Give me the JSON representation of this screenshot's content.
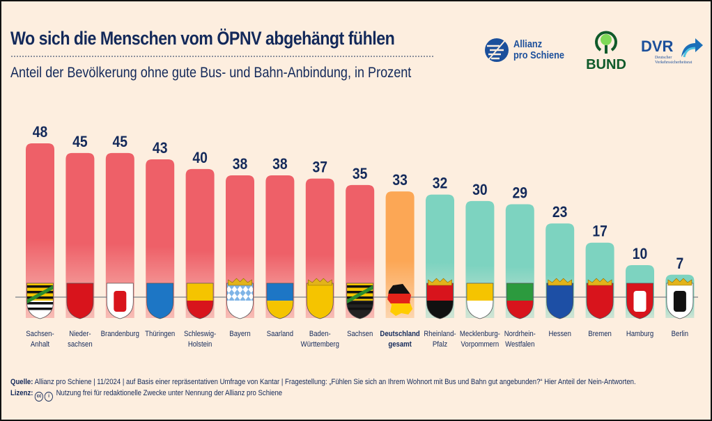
{
  "header": {
    "title": "Wo sich die Menschen vom ÖPNV abgehängt fühlen",
    "subtitle": "Anteil der Bevölkerung ohne gute Bus- und Bahn-Anbindung, in Prozent"
  },
  "logos": {
    "allianz_line1": "Allianz",
    "allianz_line2": "pro Schiene",
    "bund": "BUND",
    "dvr": "DVR",
    "dvr_line1": "Deutscher",
    "dvr_line2": "Verkehrssicherheitsrat"
  },
  "colors": {
    "above_average": "#ee6068",
    "average": "#fca755",
    "below_average": "#7dd3c0",
    "text": "#13295a",
    "background": "#fdeedf"
  },
  "chart_data": {
    "type": "bar",
    "title": "Wo sich die Menschen vom ÖPNV abgehängt fühlen",
    "subtitle": "Anteil der Bevölkerung ohne gute Bus- und Bahn-Anbindung, in Prozent",
    "xlabel": "",
    "ylabel": "",
    "unit": "%",
    "ylim": [
      0,
      50
    ],
    "grid": false,
    "categories": [
      "Sachsen-Anhalt",
      "Niedersachsen",
      "Brandenburg",
      "Thüringen",
      "Schleswig-Holstein",
      "Bayern",
      "Saarland",
      "Baden-Württemberg",
      "Sachsen",
      "Deutschland gesamt",
      "Rheinland-Pfalz",
      "Mecklenburg-Vorpommern",
      "Nordrhein-Westfalen",
      "Hessen",
      "Bremen",
      "Hamburg",
      "Berlin"
    ],
    "category_labels": [
      [
        "Sachsen-",
        "Anhalt"
      ],
      [
        "Nieder-",
        "sachsen"
      ],
      [
        "Brandenburg"
      ],
      [
        "Thüringen"
      ],
      [
        "Schleswig-",
        "Holstein"
      ],
      [
        "Bayern"
      ],
      [
        "Saarland"
      ],
      [
        "Baden-",
        "Württemberg"
      ],
      [
        "Sachsen"
      ],
      [
        "Deutschland",
        "gesamt"
      ],
      [
        "Rheinland-",
        "Pfalz"
      ],
      [
        "Mecklenburg-",
        "Vorpommern"
      ],
      [
        "Nordrhein-",
        "Westfalen"
      ],
      [
        "Hessen"
      ],
      [
        "Bremen"
      ],
      [
        "Hamburg"
      ],
      [
        "Berlin"
      ]
    ],
    "values": [
      48,
      45,
      45,
      43,
      40,
      38,
      38,
      37,
      35,
      33,
      32,
      30,
      29,
      23,
      17,
      10,
      7
    ],
    "groups": [
      "above",
      "above",
      "above",
      "above",
      "above",
      "above",
      "above",
      "above",
      "above",
      "average",
      "below",
      "below",
      "below",
      "below",
      "below",
      "below",
      "below"
    ],
    "icons": [
      "coat-of-arms-sachsen-anhalt",
      "coat-of-arms-niedersachsen",
      "coat-of-arms-brandenburg",
      "coat-of-arms-thueringen",
      "coat-of-arms-schleswig-holstein",
      "coat-of-arms-bayern",
      "coat-of-arms-saarland",
      "coat-of-arms-baden-wuerttemberg",
      "coat-of-arms-sachsen",
      "germany-flag-map",
      "coat-of-arms-rheinland-pfalz",
      "coat-of-arms-mecklenburg-vorpommern",
      "coat-of-arms-nordrhein-westfalen",
      "coat-of-arms-hessen",
      "coat-of-arms-bremen",
      "coat-of-arms-hamburg",
      "coat-of-arms-berlin"
    ]
  },
  "footer": {
    "source_label": "Quelle:",
    "source_text": " Allianz pro Schiene | 11/2024 | auf Basis einer repräsentativen Umfrage von Kantar | Fragestellung: „Fühlen Sie sich an Ihrem Wohnort mit Bus und Bahn gut angebunden?“ Hier Anteil der Nein-Antworten.",
    "license_label": "Lizenz:",
    "cc_icon": "cc",
    "by_icon": "i",
    "license_text": "Nutzung frei für redaktionelle Zwecke unter Nennung der Allianz pro Schiene"
  }
}
